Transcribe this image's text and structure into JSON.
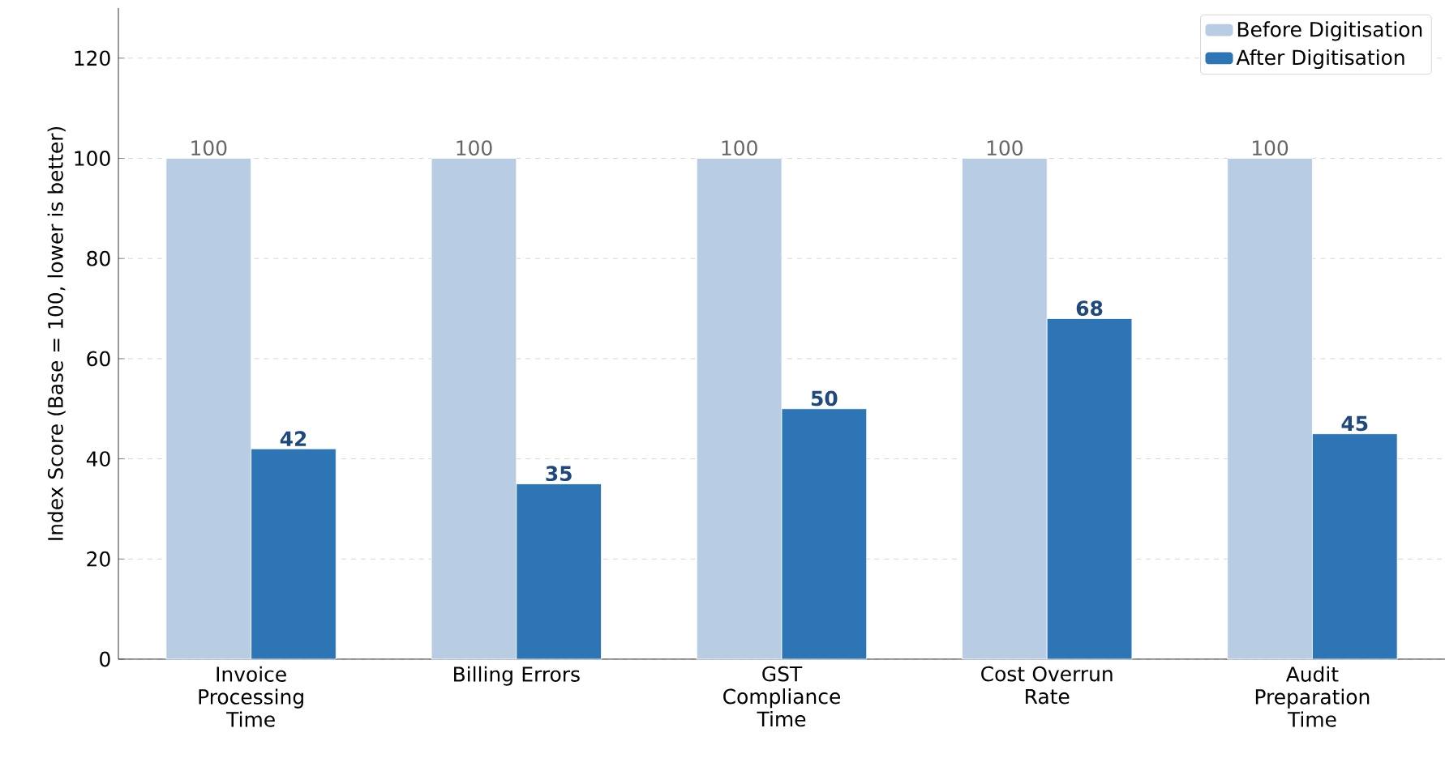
{
  "chart_data": {
    "type": "bar",
    "ylabel": "Index Score (Base = 100, lower is better)",
    "categories": [
      "Invoice Processing Time",
      "Billing Errors",
      "GST Compliance Time",
      "Cost Overrun Rate",
      "Audit Preparation Time"
    ],
    "series": [
      {
        "name": "Before Digitisation",
        "color": "#b8cce4",
        "values": [
          100,
          100,
          100,
          100,
          100
        ]
      },
      {
        "name": "After Digitisation",
        "color": "#2e75b6",
        "values": [
          42,
          35,
          50,
          68,
          45
        ]
      }
    ],
    "ylim": [
      0,
      130
    ],
    "yticks": [
      0,
      20,
      40,
      60,
      80,
      100,
      120
    ],
    "grid": "y",
    "legend": "top right",
    "data_labels": true
  }
}
